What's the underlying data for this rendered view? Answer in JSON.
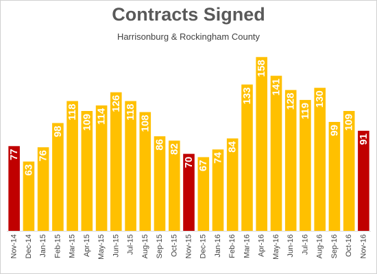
{
  "chart_data": {
    "type": "bar",
    "title": "Contracts Signed",
    "subtitle": "Harrisonburg & Rockingham County",
    "categories": [
      "Nov-14",
      "Dec-14",
      "Jan-15",
      "Feb-15",
      "Mar-15",
      "Apr-15",
      "May-15",
      "Jun-15",
      "Jul-15",
      "Aug-15",
      "Sep-15",
      "Oct-15",
      "Nov-15",
      "Dec-15",
      "Jan-16",
      "Feb-16",
      "Mar-16",
      "Apr-16",
      "May-16",
      "Jun-16",
      "Jul-16",
      "Aug-16",
      "Sep-16",
      "Oct-16",
      "Nov-16"
    ],
    "values": [
      77,
      63,
      76,
      98,
      118,
      109,
      114,
      126,
      118,
      108,
      86,
      82,
      70,
      67,
      74,
      84,
      133,
      158,
      141,
      128,
      119,
      130,
      99,
      109,
      91
    ],
    "highlighted": [
      "Nov-14",
      "Nov-15",
      "Nov-16"
    ],
    "colors": {
      "default": "#FFC000",
      "highlight": "#C00000",
      "label": "#FFFFFF"
    },
    "ylim": [
      0,
      170
    ],
    "grid": false,
    "legend": "none"
  }
}
